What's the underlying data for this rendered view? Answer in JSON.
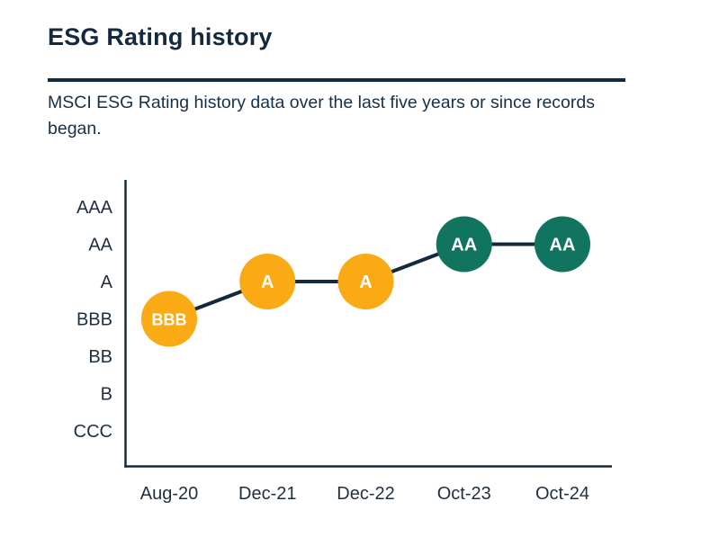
{
  "header": {
    "title": "ESG Rating history",
    "subtitle": "MSCI ESG Rating history data over the last five years or since records began."
  },
  "colors": {
    "navy": "#15293D",
    "amber": "#F9AA15",
    "teal": "#11745E",
    "label_white": "#FFFFFF"
  },
  "chart_data": {
    "type": "line",
    "title": "ESG Rating history",
    "xlabel": "",
    "ylabel": "",
    "grid": false,
    "legend": false,
    "y_ticks_top_to_bottom": [
      "AAA",
      "AA",
      "A",
      "BBB",
      "BB",
      "B",
      "CCC"
    ],
    "categories": [
      "Aug-20",
      "Dec-21",
      "Dec-22",
      "Oct-23",
      "Oct-24"
    ],
    "series": [
      {
        "name": "MSCI ESG Rating",
        "values": [
          "BBB",
          "A",
          "A",
          "AA",
          "AA"
        ],
        "point_colors": [
          "amber",
          "amber",
          "amber",
          "teal",
          "teal"
        ]
      }
    ]
  }
}
